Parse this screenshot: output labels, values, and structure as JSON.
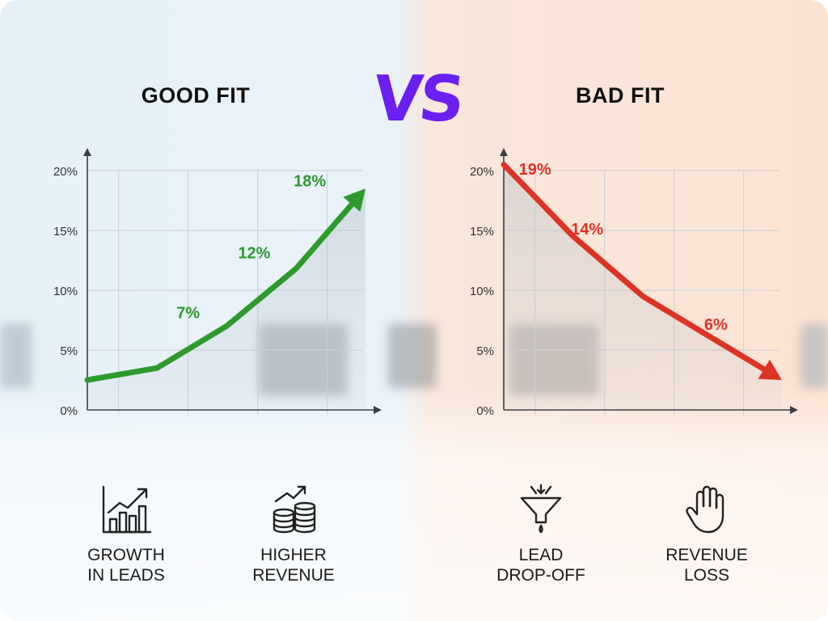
{
  "vs_text": "VS",
  "colors": {
    "good": "#2e9a2e",
    "bad": "#dd3325",
    "vs": "#6b1ff0"
  },
  "chart_data": [
    {
      "type": "line",
      "title": "GOOD FIT",
      "x": [
        0,
        1,
        2,
        3,
        4
      ],
      "series": [
        {
          "values": [
            2.5,
            3.5,
            7,
            11.8,
            18.5
          ]
        }
      ],
      "data_labels": [
        {
          "x": 1.45,
          "y": 7,
          "text": "7%"
        },
        {
          "x": 2.4,
          "y": 12,
          "text": "12%"
        },
        {
          "x": 3.2,
          "y": 18,
          "text": "18%"
        }
      ],
      "yticks": [
        "0%",
        "5%",
        "10%",
        "15%",
        "20%"
      ],
      "ylim": [
        0,
        20
      ],
      "grid": true,
      "trend": "up",
      "color": "#2e9a2e"
    },
    {
      "type": "line",
      "title": "BAD FIT",
      "x": [
        0,
        1,
        2,
        3,
        4
      ],
      "series": [
        {
          "values": [
            20.5,
            14.5,
            9.5,
            6,
            2.5
          ]
        }
      ],
      "data_labels": [
        {
          "x": 0.45,
          "y": 19,
          "text": "19%"
        },
        {
          "x": 1.2,
          "y": 14,
          "text": "14%"
        },
        {
          "x": 3.05,
          "y": 6,
          "text": "6%"
        }
      ],
      "yticks": [
        "0%",
        "5%",
        "10%",
        "15%",
        "20%"
      ],
      "ylim": [
        0,
        20
      ],
      "grid": true,
      "trend": "down",
      "color": "#dd3325"
    }
  ],
  "features": [
    {
      "label": "GROWTH\nIN LEADS",
      "icon": "bar-chart-growth-icon"
    },
    {
      "label": "HIGHER\nREVENUE",
      "icon": "coins-growth-icon"
    },
    {
      "label": "LEAD\nDROP-OFF",
      "icon": "funnel-icon"
    },
    {
      "label": "REVENUE\nLOSS",
      "icon": "stop-hand-icon"
    }
  ]
}
